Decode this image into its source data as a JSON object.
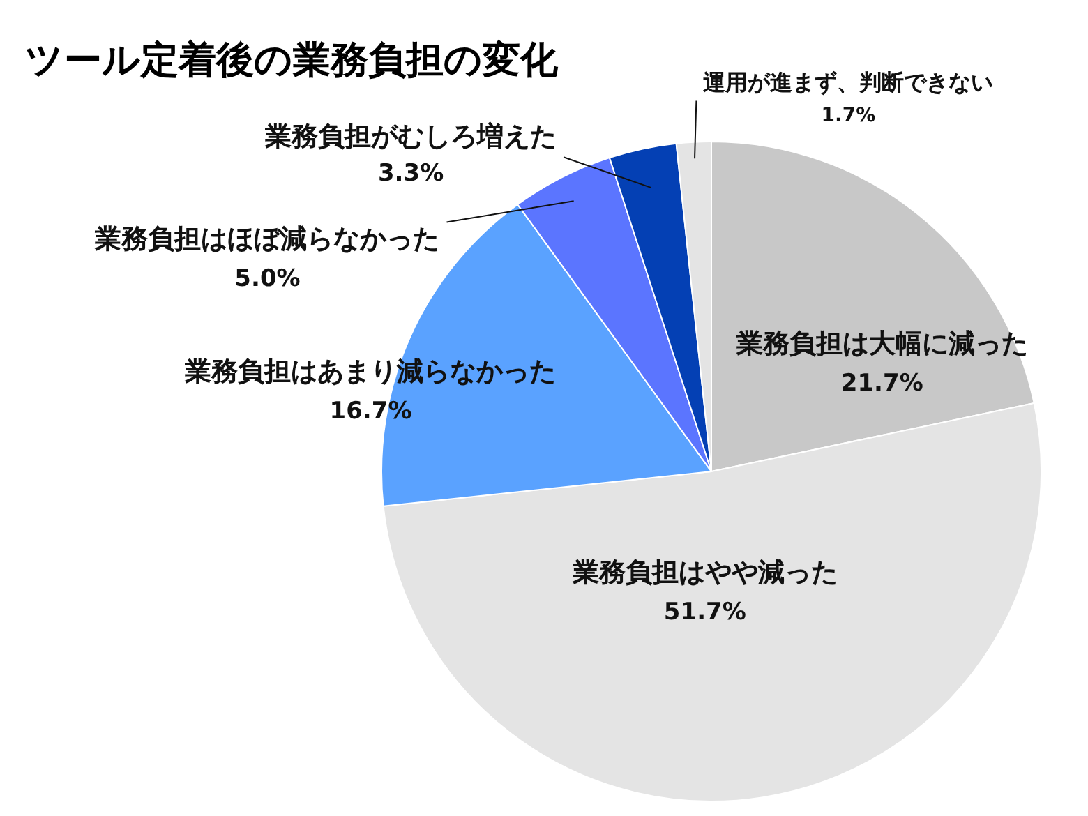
{
  "chart_data": {
    "type": "pie",
    "title": "ツール定着後の業務負担の変化",
    "categories": [
      "業務負担は大幅に減った",
      "業務負担はやや減った",
      "業務負担はあまり減らなかった",
      "業務負担はほぼ減らなかった",
      "業務負担がむしろ増えた",
      "運用が進まず、判断できない"
    ],
    "values": [
      21.7,
      51.7,
      16.7,
      5.0,
      3.3,
      1.7
    ],
    "colors": [
      "#c8c8c8",
      "#e4e4e4",
      "#5aa2ff",
      "#5b75ff",
      "#0440b4",
      "#e4e4e4"
    ],
    "value_labels": [
      "21.7%",
      "51.7%",
      "16.7%",
      "5.0%",
      "3.3%",
      "1.7%"
    ]
  }
}
